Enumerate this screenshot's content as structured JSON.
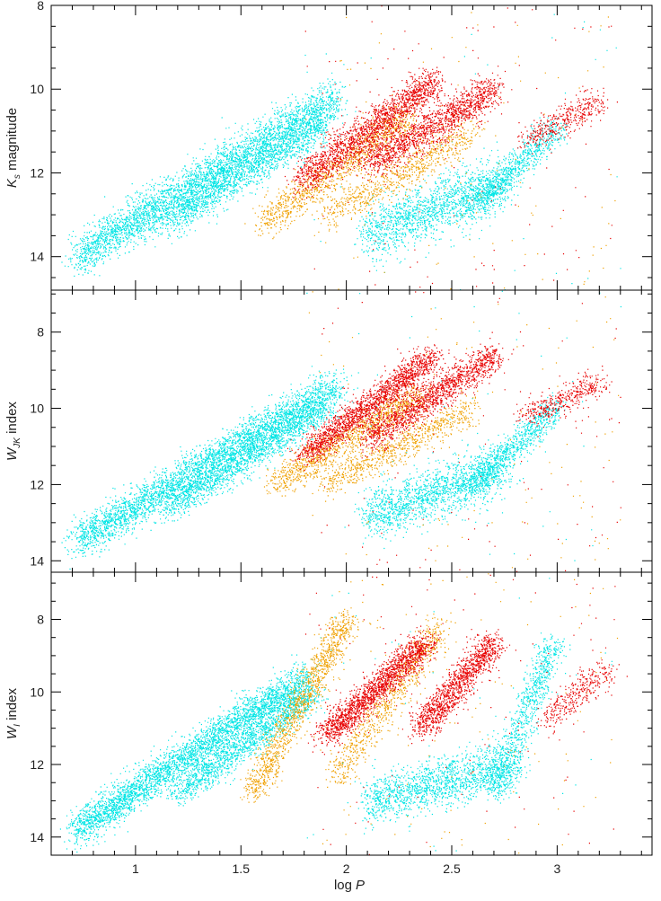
{
  "chart_data": {
    "type": "scatter",
    "shared_x": {
      "xlabel_main": "log",
      "xlabel_var": "P",
      "xlim": [
        0.6,
        3.45
      ],
      "xticks": [
        1,
        1.5,
        2,
        2.5,
        3
      ],
      "xtick_labels": [
        "1",
        "1.5",
        "2",
        "2.5",
        "3"
      ]
    },
    "series_colors": {
      "cyan": "#00e5e5",
      "orange": "#f0a000",
      "red": "#e80000"
    },
    "panels": [
      {
        "id": "top",
        "ylabel_main": "K",
        "ylabel_sub": "s",
        "ylabel_suffix": "magnitude",
        "ylim": [
          8,
          14.8
        ],
        "inverted": true,
        "yticks": [
          8,
          10,
          12,
          14
        ],
        "ytick_labels": [
          "8",
          "10",
          "12",
          "14"
        ],
        "sequences": [
          {
            "color": "cyan",
            "x_range": [
              0.72,
              1.95
            ],
            "y_start": 14.0,
            "y_end": 10.2,
            "width": 0.55,
            "density": 2200
          },
          {
            "color": "cyan",
            "x_range": [
              1.15,
              1.9
            ],
            "y_start": 13.2,
            "y_end": 10.8,
            "width": 0.45,
            "density": 900
          },
          {
            "color": "orange",
            "x_range": [
              1.6,
              2.3
            ],
            "y_start": 13.2,
            "y_end": 10.6,
            "width": 0.45,
            "density": 700
          },
          {
            "color": "red",
            "x_range": [
              1.78,
              2.42
            ],
            "y_start": 12.2,
            "y_end": 9.8,
            "width": 0.45,
            "density": 1100
          },
          {
            "color": "orange",
            "x_range": [
              1.9,
              2.6
            ],
            "y_start": 13.0,
            "y_end": 11.0,
            "width": 0.5,
            "density": 500
          },
          {
            "color": "red",
            "x_range": [
              2.1,
              2.7
            ],
            "y_start": 11.8,
            "y_end": 10.0,
            "width": 0.45,
            "density": 900
          },
          {
            "color": "cyan",
            "x_range": [
              2.1,
              2.75
            ],
            "y_start": 13.5,
            "y_end": 12.2,
            "width": 0.75,
            "density": 1000
          },
          {
            "color": "cyan",
            "x_range": [
              2.6,
              3.0
            ],
            "y_start": 12.8,
            "y_end": 10.9,
            "width": 0.35,
            "density": 500
          },
          {
            "color": "red",
            "x_range": [
              2.85,
              3.2
            ],
            "y_start": 11.2,
            "y_end": 10.3,
            "width": 0.35,
            "density": 250
          }
        ]
      },
      {
        "id": "middle",
        "ylabel_main": "W",
        "ylabel_sub": "JK",
        "ylabel_suffix": "index",
        "ylim": [
          6.9,
          14.3
        ],
        "inverted": true,
        "yticks": [
          8,
          10,
          12,
          14
        ],
        "ytick_labels": [
          "8",
          "10",
          "12",
          "14"
        ],
        "sequences": [
          {
            "color": "cyan",
            "x_range": [
              0.72,
              1.95
            ],
            "y_start": 13.5,
            "y_end": 9.4,
            "width": 0.55,
            "density": 2200
          },
          {
            "color": "cyan",
            "x_range": [
              1.15,
              1.9
            ],
            "y_start": 12.6,
            "y_end": 10.0,
            "width": 0.45,
            "density": 900
          },
          {
            "color": "orange",
            "x_range": [
              1.65,
              2.35
            ],
            "y_start": 12.0,
            "y_end": 9.6,
            "width": 0.45,
            "density": 700
          },
          {
            "color": "red",
            "x_range": [
              1.8,
              2.42
            ],
            "y_start": 11.2,
            "y_end": 8.6,
            "width": 0.4,
            "density": 1100
          },
          {
            "color": "orange",
            "x_range": [
              1.9,
              2.6
            ],
            "y_start": 12.0,
            "y_end": 10.0,
            "width": 0.45,
            "density": 500
          },
          {
            "color": "red",
            "x_range": [
              2.1,
              2.7
            ],
            "y_start": 10.8,
            "y_end": 8.6,
            "width": 0.45,
            "density": 900
          },
          {
            "color": "cyan",
            "x_range": [
              2.1,
              2.75
            ],
            "y_start": 12.8,
            "y_end": 11.6,
            "width": 0.75,
            "density": 1000
          },
          {
            "color": "cyan",
            "x_range": [
              2.6,
              3.0
            ],
            "y_start": 12.0,
            "y_end": 9.9,
            "width": 0.35,
            "density": 500
          },
          {
            "color": "red",
            "x_range": [
              2.85,
              3.2
            ],
            "y_start": 10.2,
            "y_end": 9.3,
            "width": 0.35,
            "density": 250
          }
        ]
      },
      {
        "id": "bottom",
        "ylabel_main": "W",
        "ylabel_sub": "I",
        "ylabel_suffix": "index",
        "ylim": [
          6.7,
          14.5
        ],
        "inverted": true,
        "yticks": [
          8,
          10,
          12,
          14
        ],
        "ytick_labels": [
          "8",
          "10",
          "12",
          "14"
        ],
        "sequences": [
          {
            "color": "cyan",
            "x_range": [
              0.72,
              1.8
            ],
            "y_start": 13.8,
            "y_end": 9.6,
            "width": 0.55,
            "density": 2200
          },
          {
            "color": "cyan",
            "x_range": [
              1.2,
              1.85
            ],
            "y_start": 12.8,
            "y_end": 10.0,
            "width": 0.45,
            "density": 900
          },
          {
            "color": "orange",
            "x_range": [
              1.55,
              2.0
            ],
            "y_start": 12.8,
            "y_end": 8.0,
            "width": 0.4,
            "density": 800
          },
          {
            "color": "red",
            "x_range": [
              1.9,
              2.38
            ],
            "y_start": 11.2,
            "y_end": 8.6,
            "width": 0.4,
            "density": 1100
          },
          {
            "color": "orange",
            "x_range": [
              1.95,
              2.45
            ],
            "y_start": 12.3,
            "y_end": 8.2,
            "width": 0.5,
            "density": 500
          },
          {
            "color": "red",
            "x_range": [
              2.35,
              2.7
            ],
            "y_start": 11.0,
            "y_end": 8.6,
            "width": 0.4,
            "density": 800
          },
          {
            "color": "cyan",
            "x_range": [
              2.1,
              2.8
            ],
            "y_start": 13.0,
            "y_end": 12.0,
            "width": 0.75,
            "density": 1000
          },
          {
            "color": "cyan",
            "x_range": [
              2.7,
              2.98
            ],
            "y_start": 12.8,
            "y_end": 8.6,
            "width": 0.35,
            "density": 550
          },
          {
            "color": "red",
            "x_range": [
              2.95,
              3.22
            ],
            "y_start": 10.8,
            "y_end": 9.4,
            "width": 0.4,
            "density": 220
          }
        ]
      }
    ]
  }
}
